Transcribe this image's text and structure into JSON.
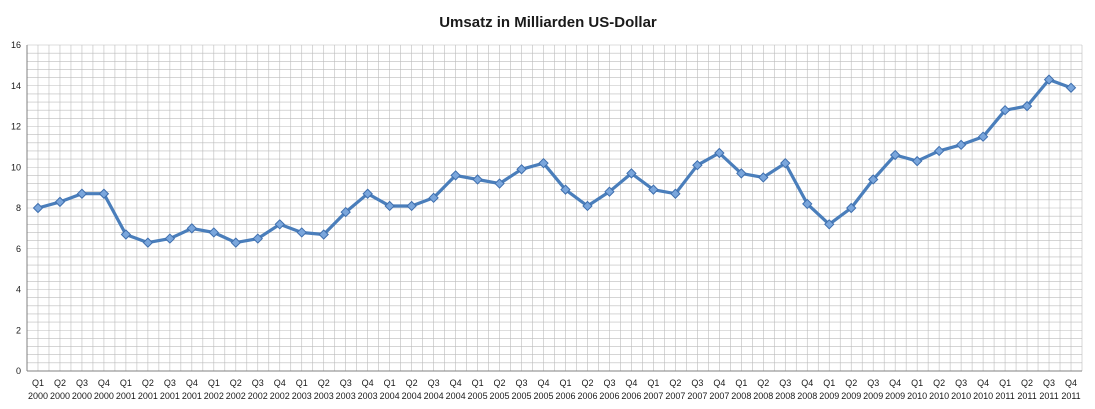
{
  "chart_data": {
    "type": "line",
    "title": "Umsatz in Milliarden US-Dollar",
    "xlabel": "",
    "ylabel": "",
    "ylim": [
      0,
      16
    ],
    "yticks": [
      "0",
      "2",
      "4",
      "6",
      "8",
      "10",
      "12",
      "14",
      "16"
    ],
    "grid": true,
    "legend": "none",
    "categories": [
      {
        "q": "Q1",
        "year": "2000"
      },
      {
        "q": "Q2",
        "year": "2000"
      },
      {
        "q": "Q3",
        "year": "2000"
      },
      {
        "q": "Q4",
        "year": "2000"
      },
      {
        "q": "Q1",
        "year": "2001"
      },
      {
        "q": "Q2",
        "year": "2001"
      },
      {
        "q": "Q3",
        "year": "2001"
      },
      {
        "q": "Q4",
        "year": "2001"
      },
      {
        "q": "Q1",
        "year": "2002"
      },
      {
        "q": "Q2",
        "year": "2002"
      },
      {
        "q": "Q3",
        "year": "2002"
      },
      {
        "q": "Q4",
        "year": "2002"
      },
      {
        "q": "Q1",
        "year": "2003"
      },
      {
        "q": "Q2",
        "year": "2003"
      },
      {
        "q": "Q3",
        "year": "2003"
      },
      {
        "q": "Q4",
        "year": "2003"
      },
      {
        "q": "Q1",
        "year": "2004"
      },
      {
        "q": "Q2",
        "year": "2004"
      },
      {
        "q": "Q3",
        "year": "2004"
      },
      {
        "q": "Q4",
        "year": "2004"
      },
      {
        "q": "Q1",
        "year": "2005"
      },
      {
        "q": "Q2",
        "year": "2005"
      },
      {
        "q": "Q3",
        "year": "2005"
      },
      {
        "q": "Q4",
        "year": "2005"
      },
      {
        "q": "Q1",
        "year": "2006"
      },
      {
        "q": "Q2",
        "year": "2006"
      },
      {
        "q": "Q3",
        "year": "2006"
      },
      {
        "q": "Q4",
        "year": "2006"
      },
      {
        "q": "Q1",
        "year": "2007"
      },
      {
        "q": "Q2",
        "year": "2007"
      },
      {
        "q": "Q3",
        "year": "2007"
      },
      {
        "q": "Q4",
        "year": "2007"
      },
      {
        "q": "Q1",
        "year": "2008"
      },
      {
        "q": "Q2",
        "year": "2008"
      },
      {
        "q": "Q3",
        "year": "2008"
      },
      {
        "q": "Q4",
        "year": "2008"
      },
      {
        "q": "Q1",
        "year": "2009"
      },
      {
        "q": "Q2",
        "year": "2009"
      },
      {
        "q": "Q3",
        "year": "2009"
      },
      {
        "q": "Q4",
        "year": "2009"
      },
      {
        "q": "Q1",
        "year": "2010"
      },
      {
        "q": "Q2",
        "year": "2010"
      },
      {
        "q": "Q3",
        "year": "2010"
      },
      {
        "q": "Q4",
        "year": "2010"
      },
      {
        "q": "Q1",
        "year": "2011"
      },
      {
        "q": "Q2",
        "year": "2011"
      },
      {
        "q": "Q3",
        "year": "2011"
      },
      {
        "q": "Q4",
        "year": "2011"
      }
    ],
    "series": [
      {
        "values": [
          8.0,
          8.3,
          8.7,
          8.7,
          6.7,
          6.3,
          6.5,
          7.0,
          6.8,
          6.3,
          6.5,
          7.2,
          6.8,
          6.7,
          7.8,
          8.7,
          8.1,
          8.1,
          8.5,
          9.6,
          9.4,
          9.2,
          9.9,
          10.2,
          8.9,
          8.1,
          8.8,
          9.7,
          8.9,
          8.7,
          10.1,
          10.7,
          9.7,
          9.5,
          10.2,
          8.2,
          7.2,
          8.0,
          9.4,
          10.6,
          10.3,
          10.8,
          11.1,
          11.5,
          12.8,
          13.0,
          14.3,
          13.9
        ]
      }
    ],
    "colors": {
      "line": "#4a7ebb",
      "marker_fill": "#7aa6dc",
      "marker_stroke": "#3f6fae",
      "grid": "#bcbcbc",
      "axis": "#808080"
    }
  }
}
